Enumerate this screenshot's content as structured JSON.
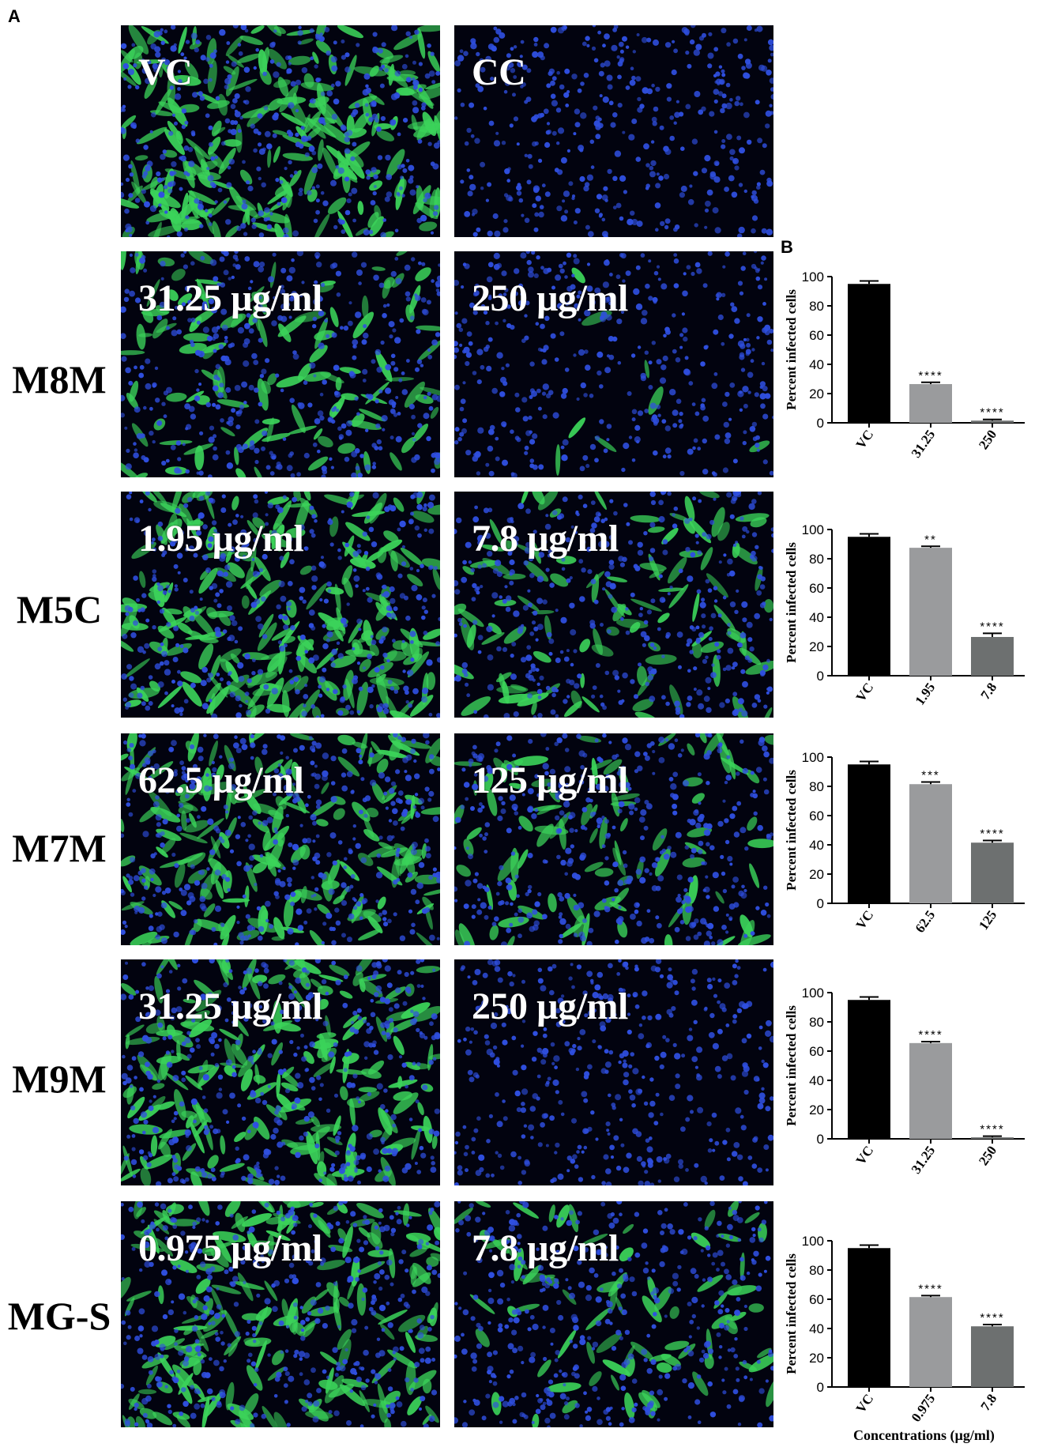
{
  "panel_labels": {
    "a": "A",
    "b": "B"
  },
  "top_row": {
    "left_caption": "VC",
    "right_caption": "CC"
  },
  "rows": [
    {
      "label": "M8M",
      "left_caption": "31.25 µg/ml",
      "right_caption": "250 µg/ml"
    },
    {
      "label": "M5C",
      "left_caption": "1.95 µg/ml",
      "right_caption": "7.8 µg/ml"
    },
    {
      "label": "M7M",
      "left_caption": "62.5 µg/ml",
      "right_caption": "125 µg/ml"
    },
    {
      "label": "M9M",
      "left_caption": "31.25 µg/ml",
      "right_caption": "250 µg/ml"
    },
    {
      "label": "MG-S",
      "left_caption": "0.975 µg/ml",
      "right_caption": "7.8 µg/ml"
    }
  ],
  "micrograph_levels": {
    "note_fields": "green = infected fraction shown by fluorescence",
    "top": [
      0.9,
      0.0
    ],
    "rows": [
      [
        0.45,
        0.03
      ],
      [
        0.85,
        0.4
      ],
      [
        0.7,
        0.35
      ],
      [
        0.75,
        0.0
      ],
      [
        0.75,
        0.3
      ]
    ]
  },
  "colors": {
    "micrograph_bg": "#02030f",
    "nuclei": "#2f4fe0",
    "infected": "#3bd35a",
    "bar_vc": "#000000",
    "bar_low": "#9a9b9d",
    "bar_high": "#6d7070"
  },
  "chart_data": [
    {
      "type": "bar",
      "categories": [
        "VC",
        "31.25",
        "250"
      ],
      "values": [
        95,
        26.5,
        1.5
      ],
      "errors": [
        2,
        1.2,
        0.8
      ],
      "significance": [
        "",
        "****",
        "****"
      ],
      "ylabel": "Percent infected cells",
      "ylim": [
        0,
        100
      ],
      "yticks": [
        "0",
        "20",
        "40",
        "60",
        "80",
        "100"
      ]
    },
    {
      "type": "bar",
      "categories": [
        "VC",
        "1.95",
        "7.8"
      ],
      "values": [
        95,
        87.5,
        26.5
      ],
      "errors": [
        2,
        1,
        2.5
      ],
      "significance": [
        "",
        "**",
        "****"
      ],
      "ylabel": "Percent infected cells",
      "ylim": [
        0,
        100
      ],
      "yticks": [
        "0",
        "20",
        "40",
        "60",
        "80",
        "100"
      ]
    },
    {
      "type": "bar",
      "categories": [
        "VC",
        "62.5",
        "125"
      ],
      "values": [
        95,
        81.5,
        41.5
      ],
      "errors": [
        2,
        1.5,
        1.5
      ],
      "significance": [
        "",
        "***",
        "****"
      ],
      "ylabel": "Percent infected cells",
      "ylim": [
        0,
        100
      ],
      "yticks": [
        "0",
        "20",
        "40",
        "60",
        "80",
        "100"
      ]
    },
    {
      "type": "bar",
      "categories": [
        "VC",
        "31.25",
        "250"
      ],
      "values": [
        95,
        65.5,
        1
      ],
      "errors": [
        2,
        1,
        0.8
      ],
      "significance": [
        "",
        "****",
        "****"
      ],
      "ylabel": "Percent infected cells",
      "ylim": [
        0,
        100
      ],
      "yticks": [
        "0",
        "20",
        "40",
        "60",
        "80",
        "100"
      ]
    },
    {
      "type": "bar",
      "categories": [
        "VC",
        "0.975",
        "7.8"
      ],
      "values": [
        95,
        61.5,
        41.5
      ],
      "errors": [
        2,
        1,
        1.2
      ],
      "significance": [
        "",
        "****",
        "****"
      ],
      "ylabel": "Percent infected cells",
      "ylim": [
        0,
        100
      ],
      "yticks": [
        "0",
        "20",
        "40",
        "60",
        "80",
        "100"
      ]
    }
  ],
  "xlabel_shared": "Concentrations (µg/ml)"
}
